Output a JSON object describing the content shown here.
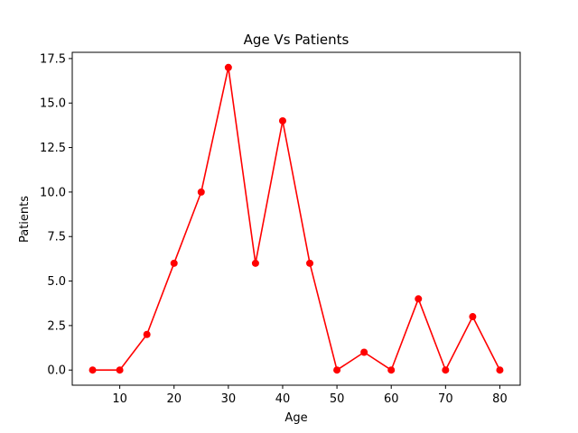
{
  "chart_data": {
    "type": "line",
    "title": "Age Vs Patients",
    "xlabel": "Age",
    "ylabel": "Patients",
    "x": [
      5,
      10,
      15,
      20,
      25,
      30,
      35,
      40,
      45,
      50,
      55,
      60,
      65,
      70,
      75,
      80
    ],
    "series": [
      {
        "values": [
          0,
          0,
          2,
          6,
          10,
          17,
          6,
          14,
          6,
          0,
          1,
          0,
          4,
          0,
          3,
          0
        ],
        "color": "#ff0000",
        "marker": "circle"
      }
    ],
    "xlim": [
      1.25,
      83.75
    ],
    "ylim": [
      -0.85,
      17.85
    ],
    "xticks": [
      10,
      20,
      30,
      40,
      50,
      60,
      70,
      80
    ],
    "xtick_labels": [
      "10",
      "20",
      "30",
      "40",
      "50",
      "60",
      "70",
      "80"
    ],
    "yticks": [
      0,
      2.5,
      5,
      7.5,
      10,
      12.5,
      15,
      17.5
    ],
    "ytick_labels": [
      "0.0",
      "2.5",
      "5.0",
      "7.5",
      "10.0",
      "12.5",
      "15.0",
      "17.5"
    ],
    "grid": false,
    "legend": false
  }
}
